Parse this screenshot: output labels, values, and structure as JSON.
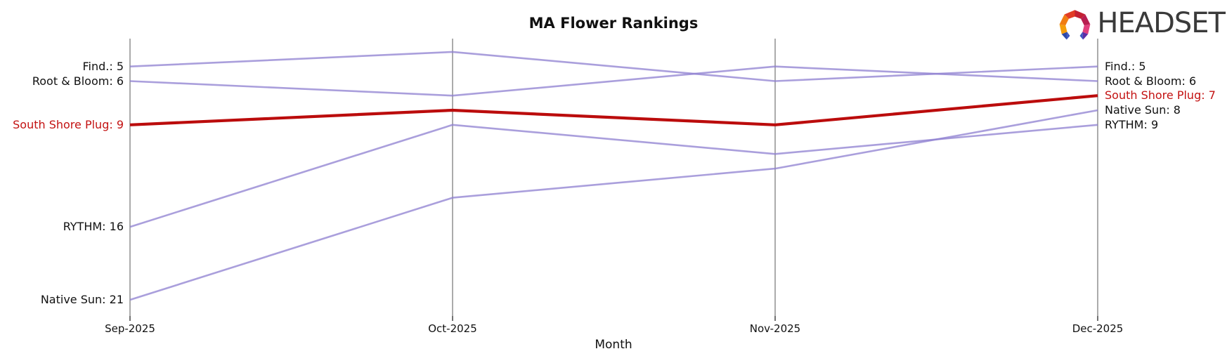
{
  "header": {
    "title": "MA Flower Rankings"
  },
  "logo": {
    "brand": "HEADSET",
    "icon": "headset-logo-icon",
    "icon_colors": [
      "#f59e0b",
      "#f07c12",
      "#e23c25",
      "#c32033",
      "#b81e50",
      "#e2407e",
      "#2c49a8",
      "#5c2ea6",
      "#3b55c0"
    ]
  },
  "colors": {
    "line_default": "#8d7fd0",
    "line_highlight": "#bb0c0c",
    "label_highlight": "#c31212",
    "gridline": "#ababab",
    "tick": "#262626",
    "text": "#111111"
  },
  "chart_data": {
    "type": "line",
    "subtype": "bump-ranking-chart",
    "title": "MA Flower Rankings",
    "xlabel": "Month",
    "categories": [
      "Sep-2025",
      "Oct-2025",
      "Nov-2025",
      "Dec-2025"
    ],
    "y_axis": {
      "unit": "rank",
      "inverted": true,
      "ticks_visible": false
    },
    "grid": "vertical gridline at each month with small bottom tick",
    "legend_position": "direct labels at both line ends",
    "series": [
      {
        "name": "Find.",
        "values": [
          5,
          4,
          6,
          5
        ],
        "highlight": false,
        "left_label": "Find.: 5",
        "right_label": "Find.: 5"
      },
      {
        "name": "Root & Bloom",
        "values": [
          6,
          7,
          5,
          6
        ],
        "highlight": false,
        "left_label": "Root & Bloom: 6",
        "right_label": "Root & Bloom: 6"
      },
      {
        "name": "South Shore Plug",
        "values": [
          9,
          8,
          9,
          7
        ],
        "highlight": true,
        "left_label": "South Shore Plug: 9",
        "right_label": "South Shore Plug: 7"
      },
      {
        "name": "RYTHM",
        "values": [
          16,
          9,
          11,
          9
        ],
        "highlight": false,
        "left_label": "RYTHM: 16",
        "right_label": "RYTHM: 9"
      },
      {
        "name": "Native Sun",
        "values": [
          21,
          14,
          12,
          8
        ],
        "highlight": false,
        "left_label": "Native Sun: 21",
        "right_label": "Native Sun: 8"
      }
    ]
  }
}
